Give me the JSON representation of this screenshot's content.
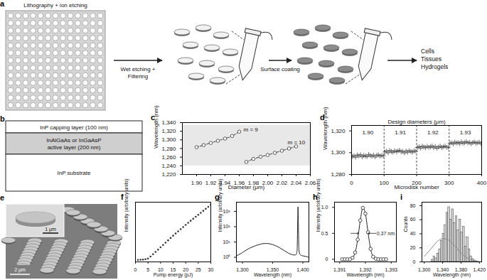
{
  "diagrams": {
    "a": {
      "label": "a",
      "top_text": "Lithography + ion etching",
      "arrow1_text": [
        "Wet etching +",
        "Filtering"
      ],
      "arrow2_text": "Surface coating",
      "destinations": [
        "Cells",
        "Tissues",
        "Hydrogels"
      ]
    },
    "b": {
      "label": "b",
      "layers": [
        {
          "lines": [
            "InP capping layer (100 nm)"
          ],
          "color": "#ffffff"
        },
        {
          "lines": [
            "InAlGaAs or InGaAsP",
            "active layer (200 nm)"
          ],
          "color": "#cfcfcf"
        },
        {
          "lines": [
            "InP substrate"
          ],
          "color": "#ffffff"
        }
      ]
    },
    "e": {
      "label": "e",
      "inset_scale": "1 μm",
      "main_scale": "2 μm"
    }
  },
  "chart_data": [
    {
      "panel": "c",
      "type": "scatter",
      "x_label": "Diameter (μm)",
      "y_label": "Wavelength (nm)",
      "xlim": [
        1.88,
        2.06
      ],
      "xticks": [
        {
          "value": 1.9,
          "label": "1.90"
        },
        {
          "value": 1.92,
          "label": "1.92"
        },
        {
          "value": 1.94,
          "label": "1.94"
        },
        {
          "value": 1.96,
          "label": "1.96"
        },
        {
          "value": 1.98,
          "label": "1.98"
        },
        {
          "value": 2.0,
          "label": "2.00"
        },
        {
          "value": 2.02,
          "label": "2.02"
        },
        {
          "value": 2.04,
          "label": "2.04"
        },
        {
          "value": 2.06,
          "label": "2.06"
        }
      ],
      "ylim": [
        1220,
        1340
      ],
      "yticks": [
        {
          "value": 1220,
          "label": "1,220"
        },
        {
          "value": 1240,
          "label": "1,240"
        },
        {
          "value": 1260,
          "label": "1,260"
        },
        {
          "value": 1280,
          "label": "1,280"
        },
        {
          "value": 1300,
          "label": "1,300"
        },
        {
          "value": 1320,
          "label": "1,320"
        },
        {
          "value": 1340,
          "label": "1,340"
        }
      ],
      "shaded_band": [
        1240,
        1334
      ],
      "series": [
        {
          "x": [
            1.9,
            1.91,
            1.92,
            1.93,
            1.94,
            1.95,
            1.96
          ],
          "values": [
            1283,
            1288,
            1293,
            1298,
            1303,
            1309,
            1319
          ],
          "color": "#333333",
          "marker": "circle",
          "line_style": "dashed"
        },
        {
          "x": [
            1.97,
            1.98,
            1.99,
            2.0,
            2.01,
            2.02,
            2.03,
            2.04
          ],
          "values": [
            1249,
            1256,
            1261,
            1265,
            1270,
            1275,
            1280,
            1285
          ],
          "color": "#333333",
          "marker": "circle",
          "line_style": "dashed"
        }
      ],
      "annotations": [
        {
          "text": "m = 9",
          "x": 1.966,
          "y": 1324
        },
        {
          "text": "m = 10",
          "x": 2.028,
          "y": 1294
        }
      ]
    },
    {
      "panel": "d",
      "type": "scatter",
      "title": "Design diameters (μm)",
      "x_label": "Microdisk number",
      "y_label": "Wavelength (nm)",
      "xlim": [
        0,
        400
      ],
      "xticks": [
        0,
        100,
        200,
        300,
        400
      ],
      "ylim": [
        1280,
        1325
      ],
      "yticks": [
        {
          "value": 1280,
          "label": "1,280"
        },
        {
          "value": 1300,
          "label": "1,300"
        },
        {
          "value": 1320,
          "label": "1,320"
        }
      ],
      "groups": [
        {
          "label": "1.90",
          "range": [
            0,
            100
          ]
        },
        {
          "label": "1.91",
          "range": [
            100,
            200
          ]
        },
        {
          "label": "1.92",
          "range": [
            200,
            300
          ]
        },
        {
          "label": "1.93",
          "range": [
            300,
            400
          ]
        }
      ],
      "series": [
        {
          "color": "#444444",
          "marker": "plus",
          "x": [
            2.5,
            7.5,
            12.5,
            17.5,
            22.5,
            27.5,
            32.5,
            37.5,
            42.5,
            47.5,
            52.5,
            57.5,
            62.5,
            67.5,
            72.5,
            77.5,
            82.5,
            87.5,
            92.5,
            97.5,
            102.5,
            107.5,
            112.5,
            117.5,
            122.5,
            127.5,
            132.5,
            137.5,
            142.5,
            147.5,
            152.5,
            157.5,
            162.5,
            167.5,
            172.5,
            177.5,
            182.5,
            187.5,
            192.5,
            197.5,
            202.5,
            207.5,
            212.5,
            217.5,
            222.5,
            227.5,
            232.5,
            237.5,
            242.5,
            247.5,
            252.5,
            257.5,
            262.5,
            267.5,
            272.5,
            277.5,
            282.5,
            287.5,
            292.5,
            297.5,
            302.5,
            307.5,
            312.5,
            317.5,
            322.5,
            327.5,
            332.5,
            337.5,
            342.5,
            347.5,
            352.5,
            357.5,
            362.5,
            367.5,
            372.5,
            377.5,
            382.5,
            387.5,
            392.5,
            397.5
          ],
          "values": [
            1296.5,
            1297.2,
            1295.8,
            1297.9,
            1296.9,
            1298.1,
            1296.2,
            1297.5,
            1297.0,
            1296.4,
            1298.4,
            1297.3,
            1296.7,
            1297.8,
            1296.1,
            1297.6,
            1298.0,
            1296.8,
            1297.4,
            1297.1,
            1300.6,
            1301.4,
            1299.9,
            1302.0,
            1301.1,
            1300.3,
            1301.8,
            1300.9,
            1301.5,
            1302.2,
            1300.7,
            1301.2,
            1299.8,
            1301.6,
            1300.4,
            1301.9,
            1301.0,
            1300.5,
            1301.7,
            1301.3,
            1304.8,
            1305.5,
            1304.2,
            1306.0,
            1305.1,
            1304.6,
            1305.8,
            1304.9,
            1305.3,
            1306.2,
            1304.5,
            1305.6,
            1304.1,
            1305.2,
            1305.9,
            1304.7,
            1305.4,
            1306.1,
            1304.9,
            1305.0,
            1308.5,
            1309.2,
            1308.0,
            1309.7,
            1308.8,
            1309.4,
            1308.3,
            1309.9,
            1308.6,
            1309.1,
            1310.1,
            1308.9,
            1309.5,
            1308.2,
            1309.3,
            1309.8,
            1308.7,
            1309.0,
            1309.6,
            1308.4
          ]
        }
      ]
    },
    {
      "panel": "f",
      "type": "scatter",
      "x_label": "Pump energy (pJ)",
      "y_label": "Intensity (arbitrary units)",
      "xlim": [
        0,
        30
      ],
      "xticks": [
        0,
        5,
        10,
        15,
        20,
        25,
        30
      ],
      "ylim": [
        0,
        3.6
      ],
      "tick_labels": "x",
      "series": [
        {
          "color": "#333333",
          "marker": "dot",
          "x": [
            1,
            2,
            3,
            4,
            5,
            6,
            7,
            8,
            9,
            10,
            11,
            12,
            13,
            14,
            15,
            16,
            17,
            18,
            19,
            20,
            21,
            22,
            23,
            24,
            25,
            26,
            27,
            28,
            29,
            30
          ],
          "values": [
            0.12,
            0.13,
            0.14,
            0.16,
            0.2,
            0.32,
            0.46,
            0.6,
            0.74,
            0.88,
            1.02,
            1.16,
            1.3,
            1.44,
            1.58,
            1.71,
            1.84,
            1.97,
            2.1,
            2.23,
            2.36,
            2.48,
            2.6,
            2.72,
            2.84,
            2.96,
            3.08,
            3.2,
            3.32,
            3.44
          ]
        }
      ]
    },
    {
      "panel": "g",
      "type": "line",
      "log": "y",
      "x_label": "Wavelength (nm)",
      "y_label": "Intensity (arbitrary units)",
      "xlim": [
        1290,
        1410
      ],
      "xticks": [
        {
          "value": 1300,
          "label": "1,300"
        },
        {
          "value": 1350,
          "label": "1,350"
        },
        {
          "value": 1400,
          "label": "1,400"
        }
      ],
      "ylim": [
        0.5,
        4000
      ],
      "yticks": [
        {
          "value": 1,
          "label": "10⁰"
        },
        {
          "value": 10,
          "label": "10¹"
        },
        {
          "value": 100,
          "label": "10²"
        },
        {
          "value": 1000,
          "label": "10³"
        }
      ],
      "series": [
        {
          "color": "#222222",
          "x": [
            1290,
            1294,
            1298,
            1302,
            1306,
            1310,
            1314,
            1318,
            1322,
            1326,
            1330,
            1334,
            1338,
            1342,
            1346,
            1350,
            1354,
            1358,
            1362,
            1366,
            1370,
            1374,
            1378,
            1382,
            1386,
            1389,
            1390.5,
            1391.5,
            1392,
            1392.5,
            1393.5,
            1395,
            1398,
            1402,
            1406,
            1410
          ],
          "values": [
            1.2,
            1.5,
            1.8,
            2.3,
            2.9,
            3.6,
            4.3,
            5,
            5.8,
            6.5,
            7.2,
            7.8,
            8,
            7.9,
            7.5,
            6.8,
            5.9,
            5,
            4.1,
            3.3,
            2.6,
            2.1,
            1.7,
            1.5,
            1.4,
            1.5,
            3,
            300,
            2000,
            200,
            3,
            1.6,
            1.3,
            1.2,
            1.1,
            1
          ]
        }
      ]
    },
    {
      "panel": "h",
      "type": "scatter",
      "x_label": "Wavelength (nm)",
      "y_label": "Intensity (arbitrary units)",
      "xlim": [
        1390.8,
        1393.2
      ],
      "xticks": [
        {
          "value": 1391,
          "label": "1,391"
        },
        {
          "value": 1392,
          "label": "1,392"
        },
        {
          "value": 1393,
          "label": "1,393"
        }
      ],
      "ylim": [
        -0.05,
        1.1
      ],
      "yticks": [
        0,
        0.5,
        {
          "value": 1,
          "label": "1.0"
        }
      ],
      "series": [
        {
          "color": "#222222",
          "marker": "circle",
          "line_style": "solid",
          "x": [
            1391.1,
            1391.2,
            1391.3,
            1391.4,
            1391.5,
            1391.6,
            1391.7,
            1391.8,
            1391.9,
            1392.0,
            1392.1,
            1392.2,
            1392.3,
            1392.4,
            1392.5,
            1392.6,
            1392.7,
            1392.8
          ],
          "values": [
            0,
            0,
            0,
            0,
            0.03,
            0.13,
            0.38,
            0.75,
            0.99,
            0.88,
            0.52,
            0.2,
            0.05,
            0.01,
            0,
            0,
            0,
            0
          ]
        }
      ],
      "fwhm": {
        "label": "0.37 nm",
        "value": 0.37,
        "center": 1391.92,
        "level": 0.5
      }
    },
    {
      "panel": "i",
      "type": "histogram",
      "x_label": "Wavelength (nm)",
      "y_label": "Counts",
      "xlim": [
        1295,
        1425
      ],
      "xticks": [
        {
          "value": 1300,
          "label": "1,300"
        },
        {
          "value": 1340,
          "label": "1,340"
        },
        {
          "value": 1380,
          "label": "1,380"
        },
        {
          "value": 1420,
          "label": "1,420"
        }
      ],
      "ylim": [
        0,
        85
      ],
      "yticks": [
        0,
        20,
        40,
        60,
        80
      ],
      "color": "#d9d9d9",
      "bins": [
        1316,
        1320,
        1324,
        1328,
        1332,
        1336,
        1340,
        1344,
        1348,
        1352,
        1356,
        1360,
        1364,
        1368,
        1372,
        1376,
        1380,
        1384,
        1388,
        1392,
        1396,
        1400,
        1404,
        1408,
        1412,
        1416
      ],
      "counts": [
        3,
        8,
        5,
        12,
        18,
        30,
        40,
        52,
        70,
        78,
        60,
        75,
        55,
        65,
        45,
        60,
        42,
        50,
        22,
        35,
        18,
        8,
        4,
        2,
        1
      ],
      "series": [
        {
          "type": "line",
          "color": "#8a8a8a",
          "x": [
            1300,
            1310,
            1320,
            1330,
            1340,
            1350,
            1360,
            1370,
            1380,
            1390,
            1400,
            1410,
            1420
          ],
          "values": [
            8,
            15,
            23,
            30,
            33,
            32,
            27,
            20,
            13,
            7,
            3.5,
            1.5,
            0.6
          ]
        }
      ]
    }
  ]
}
